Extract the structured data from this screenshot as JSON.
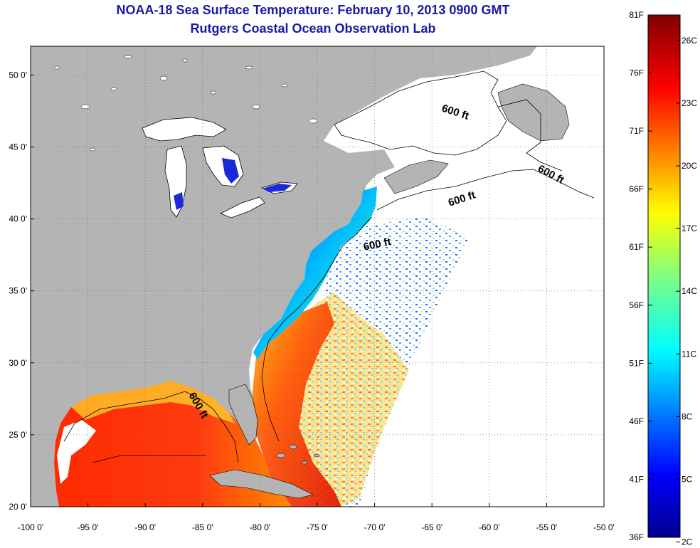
{
  "header": {
    "title_line1": "NOAA-18 Sea Surface Temperature:  February 10, 2013 0900 GMT",
    "title_line2": "Rutgers Coastal Ocean Observation Lab"
  },
  "map": {
    "lon_range": [
      -100,
      -50
    ],
    "lat_range": [
      20,
      52
    ],
    "lon_ticks": [
      "-100 0'",
      "-95 0'",
      "-90 0'",
      "-85 0'",
      "-80 0'",
      "-75 0'",
      "-70 0'",
      "-65 0'",
      "-60 0'",
      "-55 0'",
      "-50 0'"
    ],
    "lat_ticks": [
      {
        "lat": 50,
        "label": "50 0'"
      },
      {
        "lat": 45,
        "label": "45 0'"
      },
      {
        "lat": 40,
        "label": "40 0'"
      },
      {
        "lat": 35,
        "label": "35 0'"
      },
      {
        "lat": 30,
        "label": "30 0'"
      },
      {
        "lat": 25,
        "label": "25 0'"
      },
      {
        "lat": 20,
        "label": "20 0'"
      }
    ],
    "grid": "dotted",
    "land_color": "#b4b4b4",
    "depth_contour_label": "600 ft"
  },
  "colorbar": {
    "fahrenheit_labels": [
      "81F",
      "76F",
      "71F",
      "66F",
      "61F",
      "56F",
      "51F",
      "46F",
      "41F",
      "36F"
    ],
    "celsius_labels": [
      "26C",
      "23C",
      "20C",
      "17C",
      "14C",
      "11C",
      "8C",
      "5C",
      "2C"
    ],
    "colormap": "jet"
  }
}
